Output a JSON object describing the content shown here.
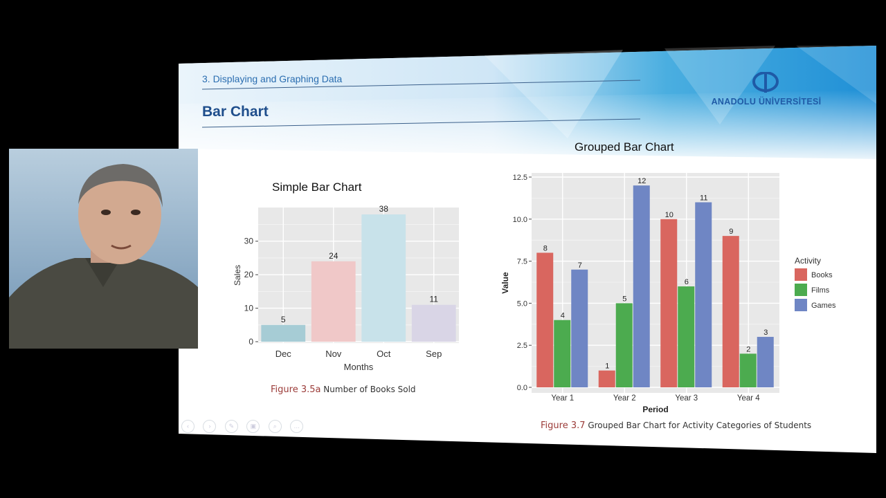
{
  "slide": {
    "breadcrumb": "3. Displaying and Graphing Data",
    "title": "Bar Chart",
    "logo_text": "ANADOLU ÜNİVERSİTESİ"
  },
  "toolbar": {
    "icons": [
      "prev-icon",
      "next-icon",
      "pen-icon",
      "copy-icon",
      "zoom-icon",
      "more-icon"
    ]
  },
  "colors": {
    "books": "#d9665f",
    "films": "#4cab4f",
    "games": "#6f86c4",
    "dec": "#a6ccd5",
    "nov": "#f0c8c8",
    "oct": "#c8e2ea",
    "sep": "#d9d5e6"
  },
  "chart_data": [
    {
      "type": "bar",
      "title": "Simple Bar Chart",
      "categories": [
        "Dec",
        "Nov",
        "Oct",
        "Sep"
      ],
      "values": [
        5,
        24,
        38,
        11
      ],
      "xlabel": "Months",
      "ylabel": "Sales",
      "yticks": [
        0,
        10,
        20,
        30
      ],
      "ylim": [
        0,
        38
      ],
      "grid": true,
      "caption_fig": "Figure 3.5a",
      "caption_text": "Number of Books Sold"
    },
    {
      "type": "bar",
      "title": "Grouped Bar Chart",
      "categories": [
        "Year 1",
        "Year 2",
        "Year 3",
        "Year 4"
      ],
      "series": [
        {
          "name": "Books",
          "values": [
            8,
            1,
            10,
            9
          ]
        },
        {
          "name": "Films",
          "values": [
            4,
            5,
            6,
            2
          ]
        },
        {
          "name": "Games",
          "values": [
            7,
            12,
            11,
            3
          ]
        }
      ],
      "xlabel": "Period",
      "ylabel": "Value",
      "yticks": [
        "0.0",
        "2.5",
        "5.0",
        "7.5",
        "10.0",
        "12.5"
      ],
      "ylim": [
        0,
        12.5
      ],
      "grid": true,
      "legend_title": "Activity",
      "legend_position": "right",
      "caption_fig": "Figure 3.7",
      "caption_text": "Grouped Bar Chart for Activity Categories of Students"
    }
  ]
}
